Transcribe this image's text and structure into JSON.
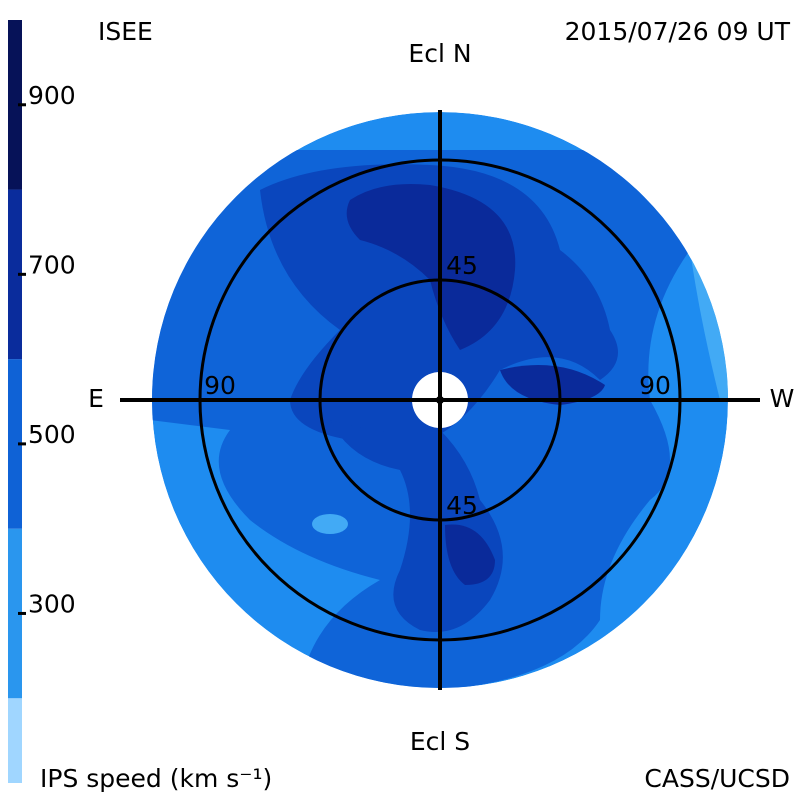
{
  "header": {
    "left": "ISEE",
    "right": "2015/07/26 09 UT"
  },
  "footer": {
    "left": "IPS speed (km s⁻¹)",
    "right": "CASS/UCSD"
  },
  "map": {
    "north": "Ecl N",
    "south": "Ecl S",
    "east": "E",
    "west": "W",
    "ring_labels": [
      "90",
      "90",
      "45",
      "45"
    ]
  },
  "colorbar": {
    "range": [
      100,
      1000
    ],
    "levels": [
      100,
      200,
      400,
      600,
      800,
      1000
    ],
    "colors": [
      "#a0d6ff",
      "#2a96ee",
      "#0f62d6",
      "#0a2c9c",
      "#061258"
    ],
    "ticks": [
      900,
      700,
      500,
      300
    ]
  }
}
